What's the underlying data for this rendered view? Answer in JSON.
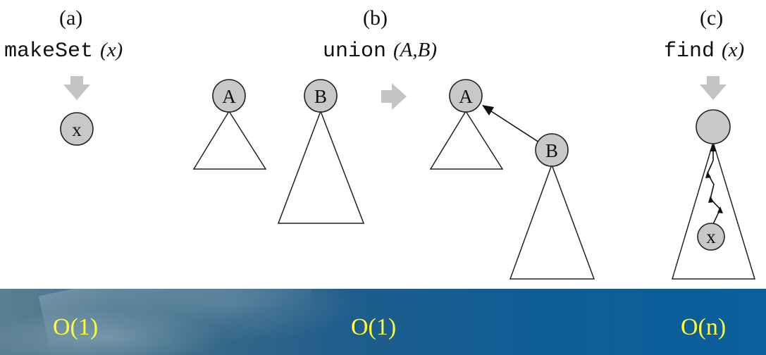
{
  "panels": [
    {
      "label": "(a)",
      "op_name": "makeSet",
      "op_args": "(x)",
      "complexity": "O(1)"
    },
    {
      "label": "(b)",
      "op_name": "union",
      "op_args": "(A,B)",
      "complexity": "O(1)"
    },
    {
      "label": "(c)",
      "op_name": "find",
      "op_args": "(x)",
      "complexity": "O(n)"
    }
  ],
  "nodes": {
    "makeset_x": "x",
    "union_before_a": "A",
    "union_before_b": "B",
    "union_after_a": "A",
    "union_after_b": "B",
    "find_x": "x"
  },
  "colors": {
    "node_fill": "#c8c8c8",
    "arrow_grey": "#c4c4c4",
    "complexity_text": "#ffff33",
    "footer_blue": "#0f5d97"
  }
}
